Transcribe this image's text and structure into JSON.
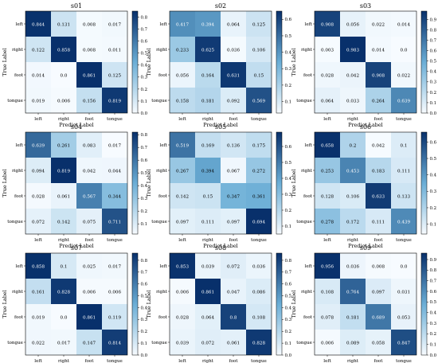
{
  "chart_data": {
    "type": "heatmap",
    "shared": {
      "categories": [
        "left",
        "right",
        "foot",
        "tongue"
      ],
      "xlabel": "Predict Label",
      "ylabel": "True Label",
      "colormap": {
        "low": "#f7fbff",
        "mid": "#6baed6",
        "high": "#08306b"
      }
    },
    "panels": [
      {
        "title": "s01",
        "vmin": 0,
        "vmax": 0.85,
        "colorbar_ticks": [
          "0.0",
          "0.1",
          "0.2",
          "0.3",
          "0.4",
          "0.5",
          "0.6",
          "0.7",
          "0.8"
        ],
        "matrix": [
          [
            "0.844",
            "0.131",
            "0.008",
            "0.017"
          ],
          [
            "0.122",
            "0.858",
            "0.008",
            "0.011"
          ],
          [
            "0.014",
            "0.0",
            "0.861",
            "0.125"
          ],
          [
            "0.019",
            "0.006",
            "0.156",
            "0.819"
          ]
        ]
      },
      {
        "title": "s02",
        "vmin": 0.03,
        "vmax": 0.65,
        "colorbar_ticks": [
          "0.1",
          "0.2",
          "0.3",
          "0.4",
          "0.5",
          "0.6"
        ],
        "matrix": [
          [
            "0.417",
            "0.394",
            "0.064",
            "0.125"
          ],
          [
            "0.233",
            "0.625",
            "0.036",
            "0.106"
          ],
          [
            "0.056",
            "0.164",
            "0.631",
            "0.15"
          ],
          [
            "0.158",
            "0.181",
            "0.092",
            "0.569"
          ]
        ]
      },
      {
        "title": "s03",
        "vmin": 0,
        "vmax": 0.98,
        "colorbar_ticks": [
          "0.0",
          "0.1",
          "0.2",
          "0.3",
          "0.4",
          "0.5",
          "0.6",
          "0.7",
          "0.8",
          "0.9"
        ],
        "matrix": [
          [
            "0.908",
            "0.056",
            "0.022",
            "0.014"
          ],
          [
            "0.003",
            "0.983",
            "0.014",
            "0.0"
          ],
          [
            "0.028",
            "0.042",
            "0.908",
            "0.022"
          ],
          [
            "0.064",
            "0.033",
            "0.264",
            "0.639"
          ]
        ]
      },
      {
        "title": "s04",
        "vmin": 0.02,
        "vmax": 0.82,
        "colorbar_ticks": [
          "0.1",
          "0.2",
          "0.3",
          "0.4",
          "0.5",
          "0.6",
          "0.7",
          "0.8"
        ],
        "matrix": [
          [
            "0.639",
            "0.261",
            "0.083",
            "0.017"
          ],
          [
            "0.094",
            "0.819",
            "0.042",
            "0.044"
          ],
          [
            "0.028",
            "0.061",
            "0.567",
            "0.344"
          ],
          [
            "0.072",
            "0.142",
            "0.075",
            "0.711"
          ]
        ]
      },
      {
        "title": "s05",
        "vmin": 0.05,
        "vmax": 0.69,
        "colorbar_ticks": [
          "0.1",
          "0.2",
          "0.3",
          "0.4",
          "0.5",
          "0.6"
        ],
        "matrix": [
          [
            "0.519",
            "0.169",
            "0.136",
            "0.175"
          ],
          [
            "0.267",
            "0.394",
            "0.067",
            "0.272"
          ],
          [
            "0.142",
            "0.15",
            "0.347",
            "0.361"
          ],
          [
            "0.097",
            "0.111",
            "0.097",
            "0.694"
          ]
        ]
      },
      {
        "title": "s06",
        "vmin": 0.04,
        "vmax": 0.66,
        "colorbar_ticks": [
          "0.1",
          "0.2",
          "0.3",
          "0.4",
          "0.5",
          "0.6"
        ],
        "matrix": [
          [
            "0.658",
            "0.2",
            "0.042",
            "0.1"
          ],
          [
            "0.253",
            "0.453",
            "0.183",
            "0.111"
          ],
          [
            "0.128",
            "0.106",
            "0.633",
            "0.133"
          ],
          [
            "0.278",
            "0.172",
            "0.111",
            "0.439"
          ]
        ]
      },
      {
        "title": "s07",
        "vmin": 0,
        "vmax": 0.86,
        "colorbar_ticks": [
          "0.0",
          "0.1",
          "0.2",
          "0.3",
          "0.4",
          "0.5",
          "0.6",
          "0.7",
          "0.8"
        ],
        "matrix": [
          [
            "0.858",
            "0.1",
            "0.025",
            "0.017"
          ],
          [
            "0.161",
            "0.828",
            "0.006",
            "0.006"
          ],
          [
            "0.019",
            "0.0",
            "0.861",
            "0.119"
          ],
          [
            "0.022",
            "0.017",
            "0.147",
            "0.814"
          ]
        ]
      },
      {
        "title": "s08",
        "vmin": 0,
        "vmax": 0.86,
        "colorbar_ticks": [
          "0.0",
          "0.1",
          "0.2",
          "0.3",
          "0.4",
          "0.5",
          "0.6",
          "0.7",
          "0.8"
        ],
        "matrix": [
          [
            "0.853",
            "0.039",
            "0.072",
            "0.036"
          ],
          [
            "0.006",
            "0.861",
            "0.047",
            "0.086"
          ],
          [
            "0.028",
            "0.064",
            "0.8",
            "0.108"
          ],
          [
            "0.039",
            "0.072",
            "0.061",
            "0.828"
          ]
        ]
      },
      {
        "title": "s09",
        "vmin": 0,
        "vmax": 0.96,
        "colorbar_ticks": [
          "0.0",
          "0.1",
          "0.2",
          "0.3",
          "0.4",
          "0.5",
          "0.6",
          "0.7",
          "0.8",
          "0.9"
        ],
        "matrix": [
          [
            "0.956",
            "0.036",
            "0.008",
            "0.0"
          ],
          [
            "0.108",
            "0.764",
            "0.097",
            "0.031"
          ],
          [
            "0.078",
            "0.181",
            "0.689",
            "0.053"
          ],
          [
            "0.006",
            "0.089",
            "0.058",
            "0.847"
          ]
        ]
      }
    ]
  }
}
